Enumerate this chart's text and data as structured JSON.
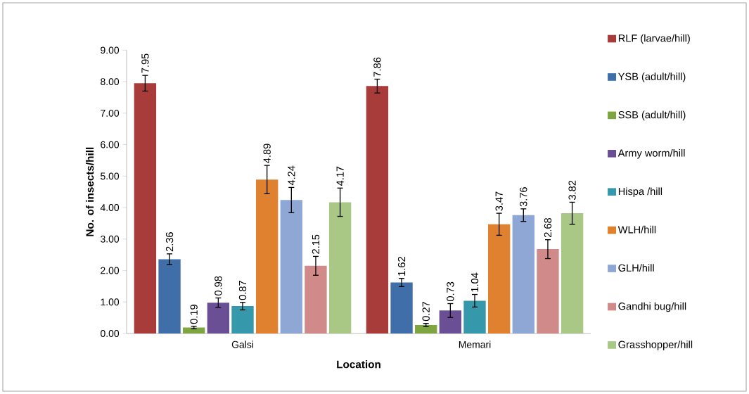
{
  "chart_data": {
    "type": "bar",
    "xlabel": "Location",
    "ylabel": "No. of insects/hill",
    "categories": [
      "Galsi",
      "Memari"
    ],
    "series": [
      {
        "name": "RLF (larvae/hill)",
        "color": "#a83c3a",
        "values": [
          7.95,
          7.86
        ],
        "errors": [
          0.25,
          0.22
        ]
      },
      {
        "name": "YSB (adult/hill)",
        "color": "#3f6ea8",
        "values": [
          2.36,
          1.62
        ],
        "errors": [
          0.17,
          0.13
        ]
      },
      {
        "name": "SSB (adult/hill)",
        "color": "#7fa541",
        "values": [
          0.19,
          0.27
        ],
        "errors": [
          0.04,
          0.05
        ]
      },
      {
        "name": "Army worm/hill",
        "color": "#6b4f94",
        "values": [
          0.98,
          0.73
        ],
        "errors": [
          0.15,
          0.22
        ]
      },
      {
        "name": "Hispa /hill",
        "color": "#3598ab",
        "values": [
          0.87,
          1.04
        ],
        "errors": [
          0.12,
          0.2
        ]
      },
      {
        "name": "WLH/hill",
        "color": "#e0812f",
        "values": [
          4.89,
          3.47
        ],
        "errors": [
          0.45,
          0.35
        ]
      },
      {
        "name": "GLH/hill",
        "color": "#8fa7d4",
        "values": [
          4.24,
          3.76
        ],
        "errors": [
          0.4,
          0.2
        ]
      },
      {
        "name": "Gandhi bug/hill",
        "color": "#d08a89",
        "values": [
          2.15,
          2.68
        ],
        "errors": [
          0.3,
          0.3
        ]
      },
      {
        "name": "Grasshopper/hill",
        "color": "#a9c785",
        "values": [
          4.17,
          3.82
        ],
        "errors": [
          0.45,
          0.35
        ]
      }
    ],
    "ylim": [
      0,
      9
    ],
    "yticks": [
      {
        "value": 0,
        "label": "0.00"
      },
      {
        "value": 1,
        "label": "1.00"
      },
      {
        "value": 2,
        "label": "2.00"
      },
      {
        "value": 3,
        "label": "3.00"
      },
      {
        "value": 4,
        "label": "4.00"
      },
      {
        "value": 5,
        "label": "5.00"
      },
      {
        "value": 6,
        "label": "6.00"
      },
      {
        "value": 7,
        "label": "7.00"
      },
      {
        "value": 8,
        "label": "8.00"
      },
      {
        "value": 9,
        "label": "9.00"
      }
    ],
    "data_labels": true,
    "legend": "right",
    "grid": false
  }
}
